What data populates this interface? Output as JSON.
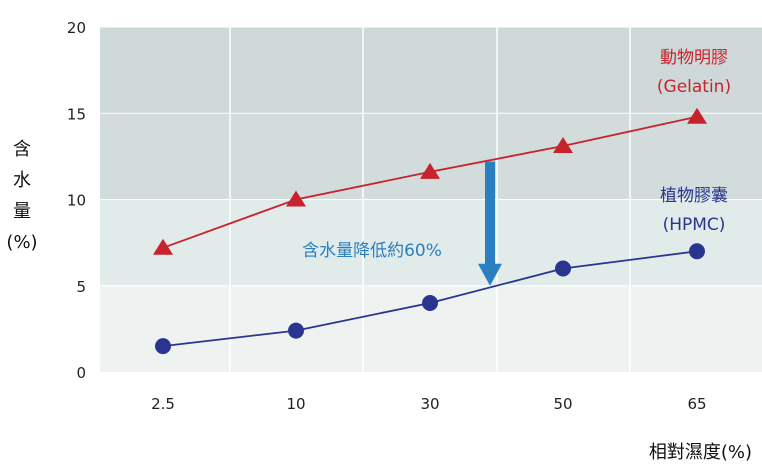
{
  "chart_data": {
    "type": "line",
    "categories": [
      "2.5",
      "10",
      "30",
      "50",
      "65"
    ],
    "ylim": [
      0,
      20
    ],
    "yticks": [
      "0",
      "5",
      "10",
      "15",
      "20"
    ],
    "ylabel": "含水量(%)",
    "ylabel_lines": [
      "含",
      "水",
      "量",
      "(%)"
    ],
    "xlabel": "相對濕度(%)",
    "grid": true,
    "series": [
      {
        "name": "動物明膠",
        "name_sub": "(Gelatin)",
        "values": [
          7.2,
          10.0,
          11.6,
          13.1,
          14.8
        ],
        "color": "#c8232c",
        "marker": "triangle"
      },
      {
        "name": "植物膠囊",
        "name_sub": "(HPMC)",
        "values": [
          1.5,
          2.4,
          4.0,
          6.0,
          7.0
        ],
        "color": "#2a3590",
        "marker": "circle"
      }
    ],
    "annotation": {
      "text": "含水量降低約60%",
      "color": "#2a7fc1",
      "arrow_from": 12.2,
      "arrow_to": 5.0,
      "arrow_between": [
        "30",
        "50"
      ]
    },
    "band_colors": [
      "#eef2f1",
      "#e0ebea",
      "#d3dcdc",
      "#cfd8d8"
    ]
  }
}
